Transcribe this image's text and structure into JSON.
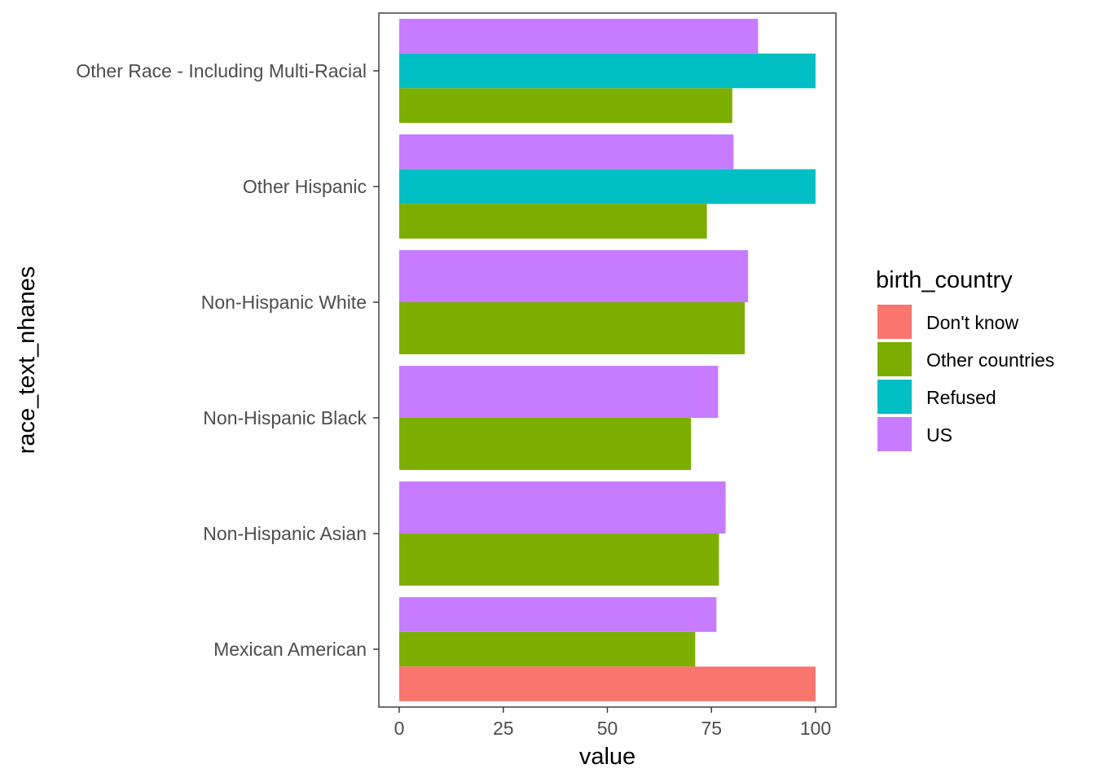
{
  "chart_data": {
    "type": "bar",
    "orientation": "horizontal",
    "position": "dodge",
    "categories": [
      "Mexican American",
      "Non-Hispanic Asian",
      "Non-Hispanic Black",
      "Non-Hispanic White",
      "Other Hispanic",
      "Other Race - Including Multi-Racial"
    ],
    "series": [
      {
        "name": "Don't know",
        "color": "#F8766D",
        "values": [
          100,
          null,
          null,
          null,
          null,
          null
        ]
      },
      {
        "name": "Other countries",
        "color": "#7CAE00",
        "values": [
          71.1,
          76.8,
          70.1,
          83.0,
          73.9,
          80.0
        ]
      },
      {
        "name": "Refused",
        "color": "#00BFC4",
        "values": [
          null,
          null,
          null,
          null,
          100,
          100
        ]
      },
      {
        "name": "US",
        "color": "#C77CFF",
        "values": [
          76.2,
          78.4,
          76.6,
          83.8,
          80.3,
          86.2
        ]
      }
    ],
    "xlabel": "value",
    "ylabel": "race_text_nhanes",
    "xlim": [
      0,
      100
    ],
    "xticks": [
      0,
      25,
      50,
      75,
      100
    ],
    "legend": {
      "title": "birth_country",
      "placement": "right"
    },
    "grid": false
  }
}
